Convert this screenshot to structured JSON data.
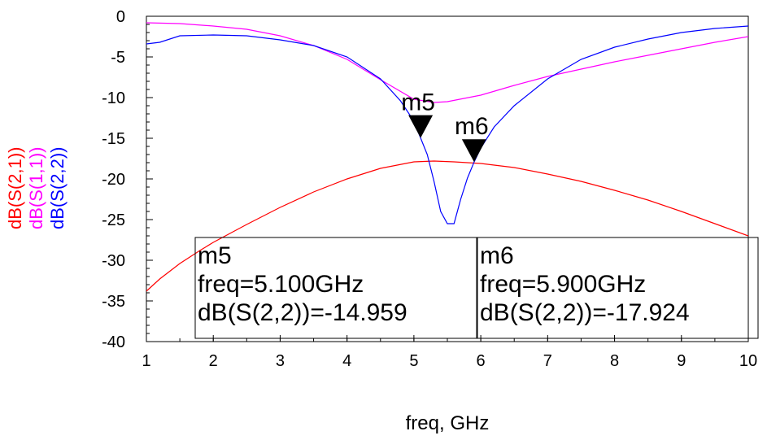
{
  "chart_data": {
    "type": "line",
    "xlabel": "freq, GHz",
    "ylabel": "",
    "xlim": [
      1,
      10
    ],
    "ylim": [
      -40,
      0
    ],
    "xticks": [
      1,
      2,
      3,
      4,
      5,
      6,
      7,
      8,
      9,
      10
    ],
    "yticks": [
      0,
      -5,
      -10,
      -15,
      -20,
      -25,
      -30,
      -35,
      -40
    ],
    "grid": false,
    "legend_position": "left, rotated",
    "series": [
      {
        "name": "dB(S(2,1))",
        "color": "#ff0000",
        "x": [
          1.0,
          1.2,
          1.5,
          1.8,
          2.0,
          2.5,
          3.0,
          3.5,
          4.0,
          4.5,
          5.0,
          5.3,
          5.6,
          6.0,
          6.5,
          7.0,
          7.5,
          8.0,
          8.5,
          9.0,
          9.5,
          10.0
        ],
        "values": [
          -33.8,
          -32.3,
          -30.4,
          -28.8,
          -27.8,
          -25.6,
          -23.5,
          -21.6,
          -20.0,
          -18.7,
          -17.9,
          -17.8,
          -17.9,
          -18.1,
          -18.6,
          -19.4,
          -20.3,
          -21.4,
          -22.6,
          -24.0,
          -25.5,
          -27.0
        ]
      },
      {
        "name": "dB(S(1,1))",
        "color": "#ff00ff",
        "x": [
          1.0,
          1.5,
          2.0,
          2.5,
          3.0,
          3.5,
          4.0,
          4.5,
          5.0,
          5.3,
          5.5,
          6.0,
          6.5,
          7.0,
          7.5,
          8.0,
          8.5,
          9.0,
          9.5,
          10.0
        ],
        "values": [
          -0.8,
          -0.9,
          -1.2,
          -1.6,
          -2.4,
          -3.6,
          -5.3,
          -7.8,
          -10.2,
          -10.6,
          -10.5,
          -9.7,
          -8.5,
          -7.4,
          -6.5,
          -5.6,
          -4.8,
          -4.0,
          -3.2,
          -2.5
        ]
      },
      {
        "name": "dB(S(2,2))",
        "color": "#0000ff",
        "x": [
          1.0,
          1.2,
          1.5,
          2.0,
          2.5,
          3.0,
          3.5,
          4.0,
          4.5,
          4.8,
          5.0,
          5.1,
          5.2,
          5.3,
          5.4,
          5.5,
          5.6,
          5.7,
          5.8,
          5.9,
          6.0,
          6.2,
          6.5,
          7.0,
          7.5,
          8.0,
          8.5,
          9.0,
          9.5,
          10.0
        ],
        "values": [
          -3.4,
          -3.2,
          -2.4,
          -2.3,
          -2.4,
          -2.9,
          -3.6,
          -5.0,
          -7.7,
          -10.4,
          -12.9,
          -14.959,
          -17.0,
          -20.3,
          -24.0,
          -25.5,
          -25.5,
          -22.5,
          -19.9,
          -17.924,
          -16.2,
          -13.6,
          -11.0,
          -7.7,
          -5.3,
          -3.8,
          -2.8,
          -2.0,
          -1.5,
          -1.2
        ]
      }
    ],
    "markers": [
      {
        "name": "m5",
        "x": 5.1,
        "y": -14.959,
        "box_lines": [
          "m5",
          "freq=5.100GHz",
          "dB(S(2,2))=-14.959"
        ]
      },
      {
        "name": "m6",
        "x": 5.9,
        "y": -17.924,
        "box_lines": [
          "m6",
          "freq=5.900GHz",
          "dB(S(2,2))=-17.924"
        ]
      }
    ]
  }
}
